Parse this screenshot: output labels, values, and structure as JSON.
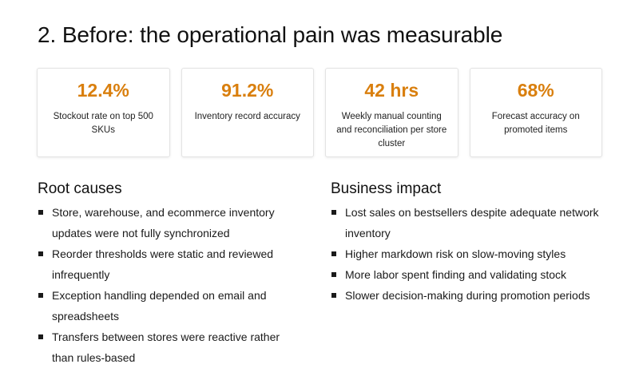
{
  "slide": {
    "title": "2. Before: the operational pain was measurable"
  },
  "metrics": [
    {
      "value": "12.4%",
      "label": "Stockout rate on top 500 SKUs"
    },
    {
      "value": "91.2%",
      "label": "Inventory record accuracy"
    },
    {
      "value": "42 hrs",
      "label": "Weekly manual counting and reconciliation per store cluster"
    },
    {
      "value": "68%",
      "label": "Forecast accuracy on promoted items"
    }
  ],
  "accent_color": "#d97f0e",
  "root_causes": {
    "heading": "Root causes",
    "items": [
      "Store, warehouse, and ecommerce inventory updates were not fully synchronized",
      "Reorder thresholds were static and reviewed infrequently",
      "Exception handling depended on email and spreadsheets",
      "Transfers between stores were reactive rather than rules-based"
    ]
  },
  "business_impact": {
    "heading": "Business impact",
    "items": [
      "Lost sales on bestsellers despite adequate network inventory",
      "Higher markdown risk on slow-moving styles",
      "More labor spent finding and validating stock",
      "Slower decision-making during promotion periods"
    ]
  }
}
